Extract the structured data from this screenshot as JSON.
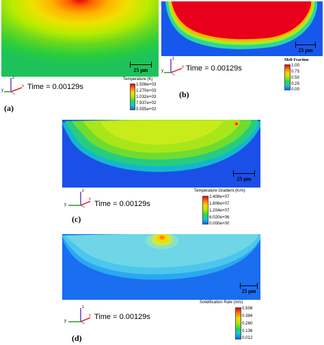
{
  "time_label": "Time = 0.00129s",
  "scale_label": "25 μm",
  "axis_letters": {
    "z": "z",
    "x": "x",
    "y": "y"
  },
  "panels": {
    "a": {
      "label": "(a)",
      "legend_title": "Temperature (K)",
      "ticks": [
        "1.508e+03",
        "1.270e+03",
        "1.032e+03",
        "7.937e+02",
        "5.555e+02"
      ],
      "colormap": [
        "#e0001b",
        "#ff7d00",
        "#ffd400",
        "#a8e600",
        "#2ad64a",
        "#14c8d2",
        "#0a64f0"
      ]
    },
    "b": {
      "label": "(b)",
      "legend_title": "Melt Fraction",
      "ticks": [
        "1.00",
        "0.75",
        "0.50",
        "0.25",
        "0.00"
      ],
      "colormap": [
        "#e0001b",
        "#ff7d00",
        "#ffd400",
        "#a8e600",
        "#2ad64a",
        "#14c8d2",
        "#0a64f0"
      ]
    },
    "c": {
      "label": "(c)",
      "legend_title": "Temperature Gradient (K/m)",
      "ticks": [
        "2.408e+07",
        "1.806e+07",
        "1.204e+07",
        "6.020e+06",
        "0.000e+00"
      ],
      "colormap": [
        "#e0001b",
        "#ff7d00",
        "#ffd400",
        "#a8e600",
        "#2ad64a",
        "#14c8d2",
        "#0a64f0"
      ]
    },
    "d": {
      "label": "(d)",
      "legend_title": "Solidification Rate (m/s)",
      "ticks": [
        "0.508",
        "0.384",
        "0.260",
        "0.136",
        "0.012"
      ],
      "colormap": [
        "#e0001b",
        "#ff7d00",
        "#ffd400",
        "#a8e600",
        "#2ad64a",
        "#14c8d2",
        "#0a64f0"
      ]
    }
  }
}
